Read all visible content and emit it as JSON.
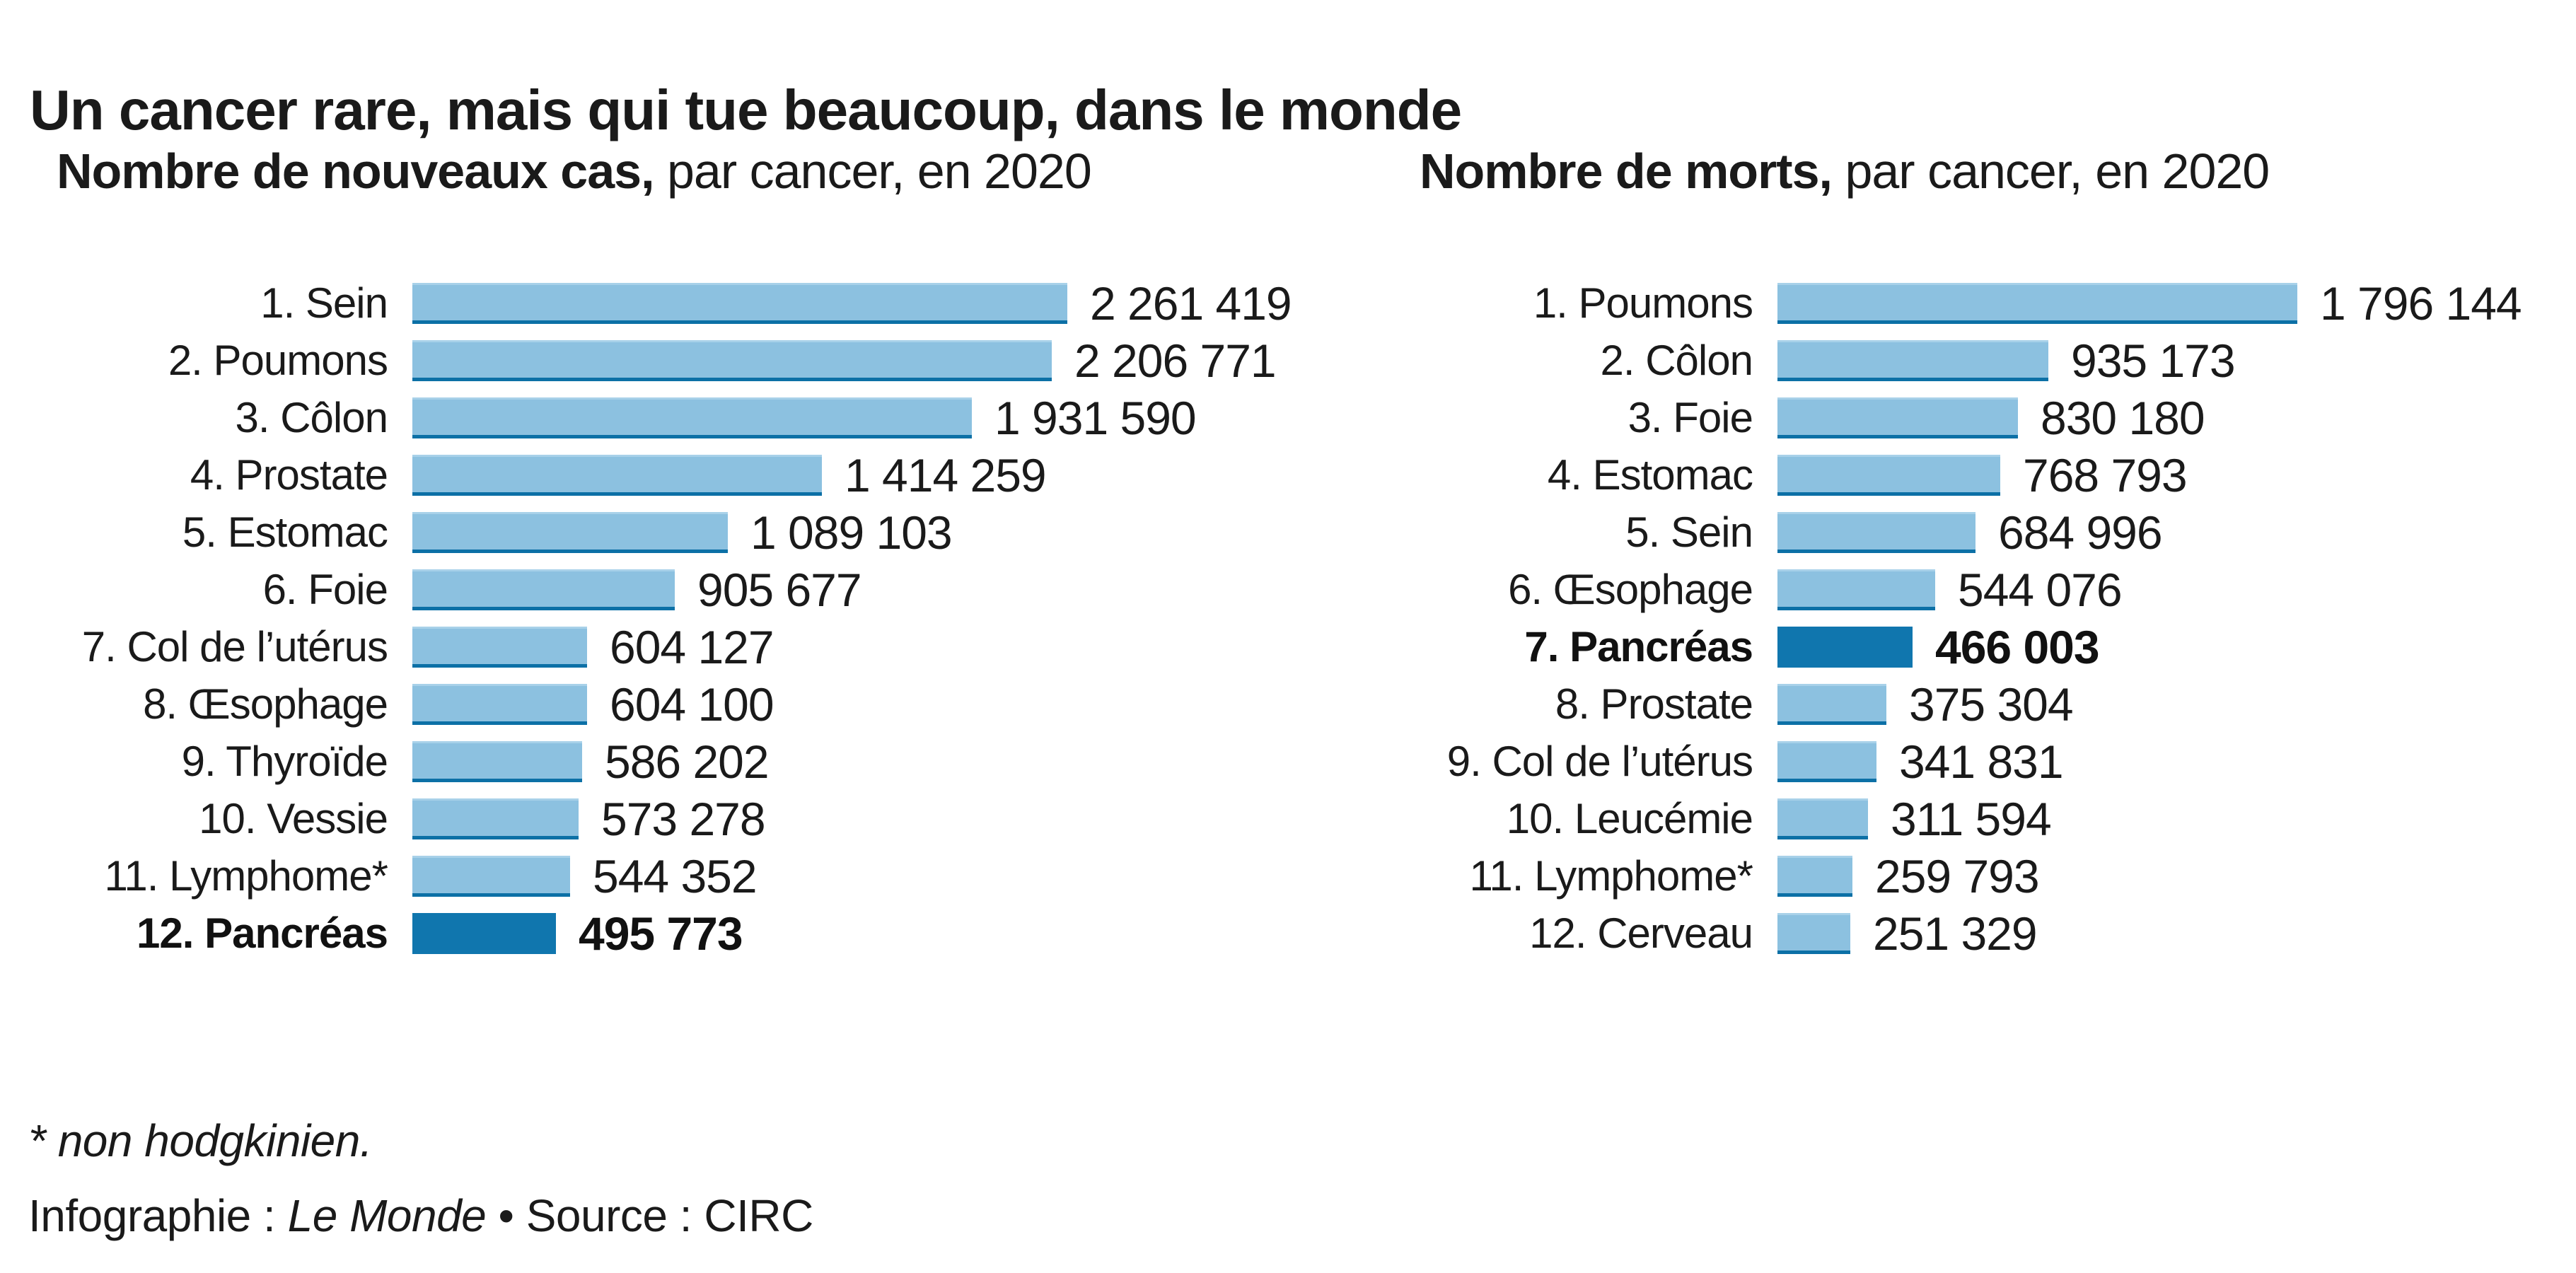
{
  "title": "Un cancer rare, mais qui tue beaucoup, dans le monde",
  "footnote": "* non hodgkinien.",
  "credit": {
    "prefix": "Infographie : ",
    "brand": "Le Monde",
    "rest": " • Source : CIRC"
  },
  "colors": {
    "bar_fill": "#8CC1E0",
    "bar_bottom_edge": "#0C70A6",
    "bar_highlight": "#1076AE",
    "text": "#1A1A1A",
    "background": "#FFFFFF"
  },
  "chart_data": [
    {
      "type": "bar",
      "orientation": "horizontal",
      "title_bold": "Nombre de nouveaux cas,",
      "title_rest": " par cancer, en 2020",
      "categories": [
        "1. Sein",
        "2. Poumons",
        "3. Côlon",
        "4. Prostate",
        "5. Estomac",
        "6. Foie",
        "7. Col de l’utérus",
        "8. Œsophage",
        "9. Thyroïde",
        "10. Vessie",
        "11. Lymphome*",
        "12. Pancréas"
      ],
      "values": [
        2261419,
        2206771,
        1931590,
        1414259,
        1089103,
        905677,
        604127,
        604100,
        586202,
        573278,
        544352,
        495773
      ],
      "value_labels": [
        "2 261 419",
        "2 206 771",
        "1 931 590",
        "1 414 259",
        "1 089 103",
        "905 677",
        "604 127",
        "604 100",
        "586 202",
        "573 278",
        "544 352",
        "495 773"
      ],
      "highlight_index": 11,
      "highlight_category": "12. Pancréas",
      "xlim": [
        0,
        2261419
      ],
      "grid": false,
      "legend": false
    },
    {
      "type": "bar",
      "orientation": "horizontal",
      "title_bold": "Nombre de morts,",
      "title_rest": " par cancer, en 2020",
      "categories": [
        "1. Poumons",
        "2. Côlon",
        "3. Foie",
        "4. Estomac",
        "5. Sein",
        "6. Œsophage",
        "7. Pancréas",
        "8. Prostate",
        "9. Col de l’utérus",
        "10. Leucémie",
        "11. Lymphome*",
        "12. Cerveau"
      ],
      "values": [
        1796144,
        935173,
        830180,
        768793,
        684996,
        544076,
        466003,
        375304,
        341831,
        311594,
        259793,
        251329
      ],
      "value_labels": [
        "1 796 144",
        "935 173",
        "830 180",
        "768 793",
        "684 996",
        "544 076",
        "466 003",
        "375 304",
        "341 831",
        "311 594",
        "259 793",
        "251 329"
      ],
      "highlight_index": 6,
      "highlight_category": "7. Pancréas",
      "xlim": [
        0,
        2261419
      ],
      "grid": false,
      "legend": false
    }
  ]
}
